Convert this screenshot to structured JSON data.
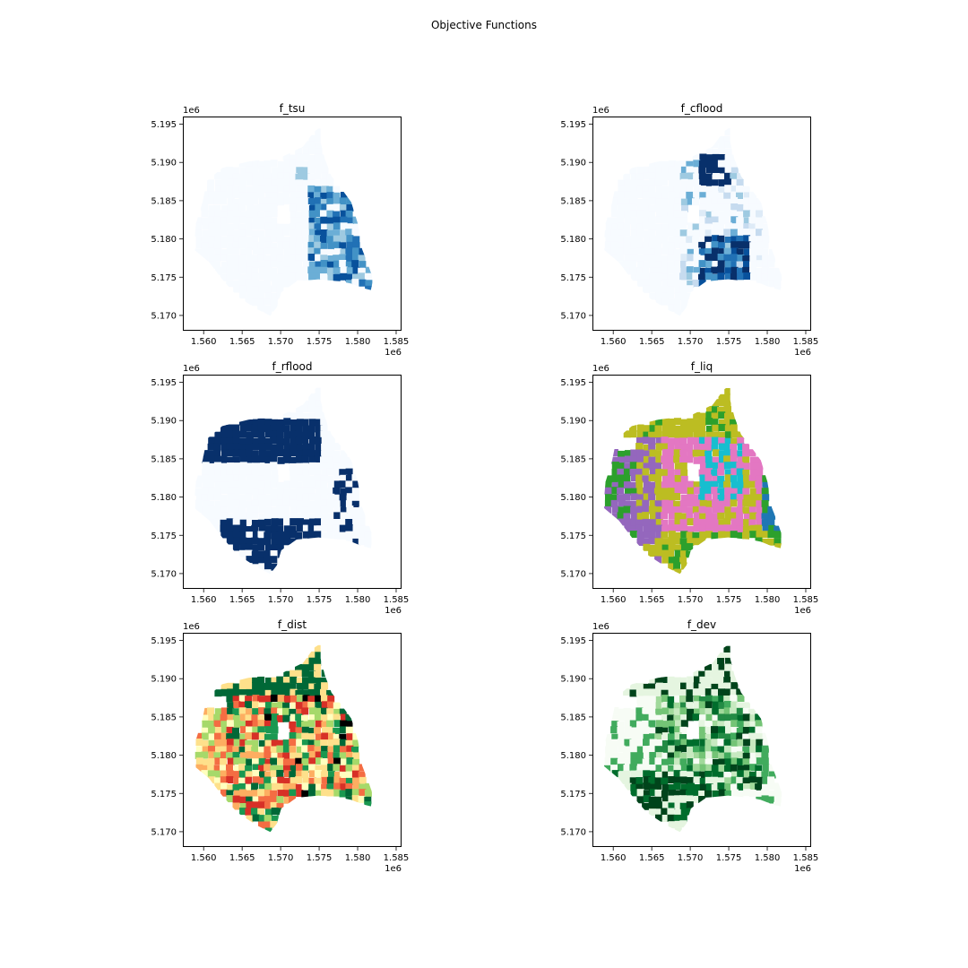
{
  "figure": {
    "suptitle": "Objective Functions"
  },
  "chart_data": [
    {
      "type": "choropleth-map",
      "title": "f_tsu",
      "xticks": [
        "1.560",
        "1.565",
        "1.570",
        "1.575",
        "1.580",
        "1.585"
      ],
      "yticks": [
        "5.195",
        "5.190",
        "5.185",
        "5.180",
        "5.175",
        "5.170"
      ],
      "x_offset_label": "1e6",
      "y_offset_label": "1e6",
      "xlim": [
        1.5573,
        1.5857
      ],
      "ylim": [
        5.168,
        5.196
      ],
      "colormap": "Blues",
      "colors": [
        "#f7fbff",
        "#deebf7",
        "#c6dbef",
        "#9ecae1",
        "#6baed6",
        "#4292c6",
        "#2171b5",
        "#08519c",
        "#08306b"
      ]
    },
    {
      "type": "choropleth-map",
      "title": "f_cflood",
      "xticks": [
        "1.560",
        "1.565",
        "1.570",
        "1.575",
        "1.580",
        "1.585"
      ],
      "yticks": [
        "5.195",
        "5.190",
        "5.185",
        "5.180",
        "5.175",
        "5.170"
      ],
      "x_offset_label": "1e6",
      "y_offset_label": "1e6",
      "xlim": [
        1.5573,
        1.5857
      ],
      "ylim": [
        5.168,
        5.196
      ],
      "colormap": "Blues",
      "colors": [
        "#f7fbff",
        "#deebf7",
        "#c6dbef",
        "#9ecae1",
        "#6baed6",
        "#4292c6",
        "#2171b5",
        "#08519c",
        "#08306b"
      ]
    },
    {
      "type": "choropleth-map",
      "title": "f_rflood",
      "xticks": [
        "1.560",
        "1.565",
        "1.570",
        "1.575",
        "1.580",
        "1.585"
      ],
      "yticks": [
        "5.195",
        "5.190",
        "5.185",
        "5.180",
        "5.175",
        "5.170"
      ],
      "x_offset_label": "1e6",
      "y_offset_label": "1e6",
      "xlim": [
        1.5573,
        1.5857
      ],
      "ylim": [
        5.168,
        5.196
      ],
      "colormap": "Blues",
      "colors": [
        "#f7fbff",
        "#08306b"
      ]
    },
    {
      "type": "choropleth-map",
      "title": "f_liq",
      "xticks": [
        "1.560",
        "1.565",
        "1.570",
        "1.575",
        "1.580",
        "1.585"
      ],
      "yticks": [
        "5.195",
        "5.190",
        "5.185",
        "5.180",
        "5.175",
        "5.170"
      ],
      "x_offset_label": "1e6",
      "y_offset_label": "1e6",
      "xlim": [
        1.5573,
        1.5857
      ],
      "ylim": [
        5.168,
        5.196
      ],
      "colormap": "tab10 (categorical)",
      "colors": [
        "#bcbd22",
        "#2ca02c",
        "#9467bd",
        "#e377c2",
        "#17becf",
        "#1f77b4"
      ]
    },
    {
      "type": "choropleth-map",
      "title": "f_dist",
      "xticks": [
        "1.560",
        "1.565",
        "1.570",
        "1.575",
        "1.580",
        "1.585"
      ],
      "yticks": [
        "5.195",
        "5.190",
        "5.185",
        "5.180",
        "5.175",
        "5.170"
      ],
      "x_offset_label": "1e6",
      "y_offset_label": "1e6",
      "xlim": [
        1.5573,
        1.5857
      ],
      "ylim": [
        5.168,
        5.196
      ],
      "colormap": "RdYlGn",
      "colors": [
        "#006837",
        "#1a9850",
        "#a6d96a",
        "#ffffbf",
        "#fee08b",
        "#fdae61",
        "#f46d43",
        "#d73027",
        "#000000"
      ]
    },
    {
      "type": "choropleth-map",
      "title": "f_dev",
      "xticks": [
        "1.560",
        "1.565",
        "1.570",
        "1.575",
        "1.580",
        "1.585"
      ],
      "yticks": [
        "5.195",
        "5.190",
        "5.185",
        "5.180",
        "5.175",
        "5.170"
      ],
      "x_offset_label": "1e6",
      "y_offset_label": "1e6",
      "xlim": [
        1.5573,
        1.5857
      ],
      "ylim": [
        5.168,
        5.196
      ],
      "colormap": "Greens",
      "colors": [
        "#f7fcf5",
        "#e5f5e0",
        "#c7e9c0",
        "#a1d99b",
        "#74c476",
        "#41ab5d",
        "#238b45",
        "#006d2c",
        "#00441b"
      ]
    }
  ]
}
